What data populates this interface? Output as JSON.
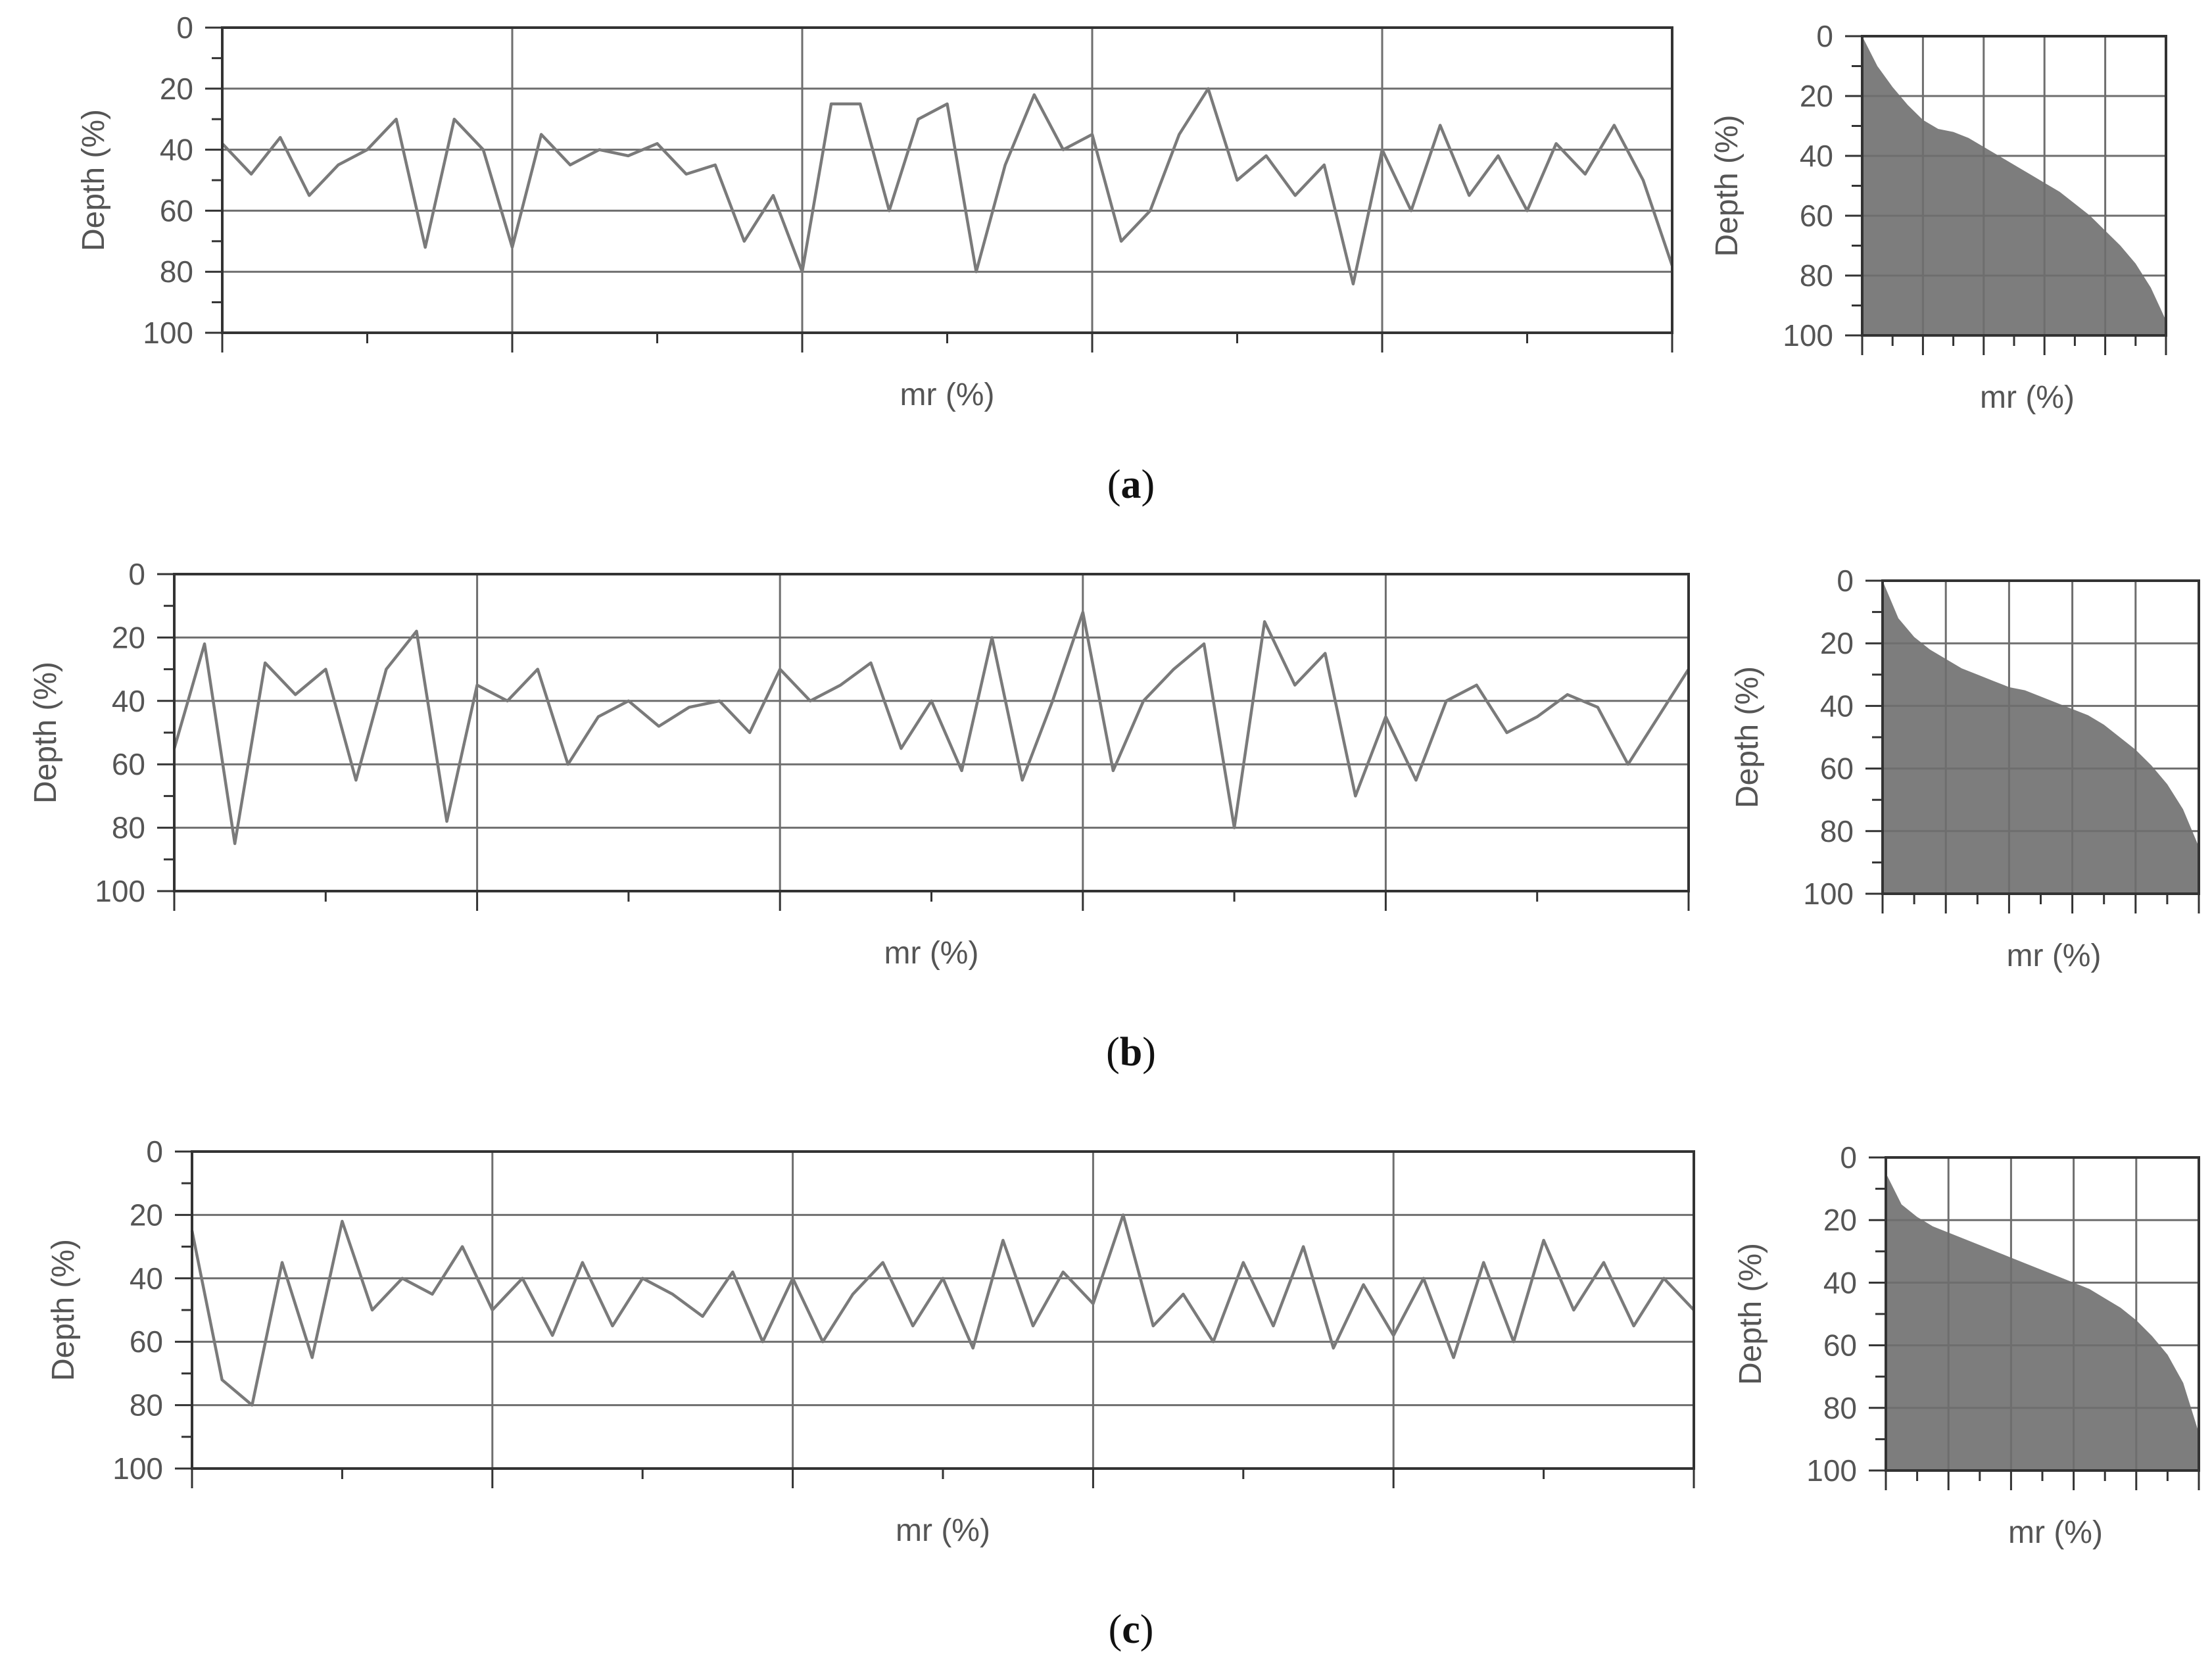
{
  "colors": {
    "line": "#7a7a7a",
    "axis": "#333333",
    "grid": "#6e6e6e",
    "fill": "#7d7d7d",
    "text": "#555555",
    "caption": "#111111"
  },
  "chart_data": [
    {
      "id": "a-profile",
      "type": "line",
      "caption": "a",
      "xlabel": "mr (%)",
      "ylabel": "Depth (%)",
      "ylim": [
        0,
        100
      ],
      "y_inverted": true,
      "y_ticks": [
        "0",
        "20",
        "40",
        "60",
        "80",
        "100"
      ],
      "grid": true,
      "x": [
        0,
        2,
        4,
        6,
        8,
        10,
        12,
        14,
        16,
        18,
        20,
        22,
        24,
        26,
        28,
        30,
        32,
        34,
        36,
        38,
        40,
        42,
        44,
        46,
        48,
        50,
        52,
        54,
        56,
        58,
        60,
        62,
        64,
        66,
        68,
        70,
        72,
        74,
        76,
        78,
        80,
        82,
        84,
        86,
        88,
        90,
        92,
        94,
        96,
        98,
        100
      ],
      "series": [
        {
          "values": [
            38,
            48,
            36,
            55,
            45,
            40,
            30,
            72,
            30,
            40,
            72,
            35,
            45,
            40,
            42,
            38,
            48,
            45,
            70,
            55,
            80,
            25,
            25,
            60,
            30,
            25,
            80,
            45,
            22,
            40,
            35,
            70,
            60,
            35,
            20,
            50,
            42,
            55,
            45,
            84,
            40,
            60,
            32,
            55,
            42,
            60,
            38,
            48,
            32,
            50,
            78
          ]
        }
      ]
    },
    {
      "id": "a-abbott",
      "type": "area",
      "caption": "a",
      "xlabel": "mr (%)",
      "ylabel": "Depth (%)",
      "ylim": [
        0,
        100
      ],
      "xlim": [
        0,
        100
      ],
      "y_inverted": true,
      "y_ticks": [
        "0",
        "20",
        "40",
        "60",
        "80",
        "100"
      ],
      "grid": true,
      "x": [
        0,
        5,
        10,
        15,
        20,
        25,
        30,
        35,
        40,
        45,
        50,
        55,
        60,
        65,
        70,
        75,
        80,
        85,
        90,
        95,
        100
      ],
      "series": [
        {
          "values": [
            0,
            10,
            17,
            23,
            28,
            31,
            32,
            34,
            37,
            40,
            43,
            46,
            49,
            52,
            56,
            60,
            65,
            70,
            76,
            84,
            95
          ]
        }
      ]
    },
    {
      "id": "b-profile",
      "type": "line",
      "caption": "b",
      "xlabel": "mr (%)",
      "ylabel": "Depth (%)",
      "ylim": [
        0,
        100
      ],
      "y_inverted": true,
      "y_ticks": [
        "0",
        "20",
        "40",
        "60",
        "80",
        "100"
      ],
      "grid": true,
      "x": [
        0,
        2,
        4,
        6,
        8,
        10,
        12,
        14,
        16,
        18,
        20,
        22,
        24,
        26,
        28,
        30,
        32,
        34,
        36,
        38,
        40,
        42,
        44,
        46,
        48,
        50,
        52,
        54,
        56,
        58,
        60,
        62,
        64,
        66,
        68,
        70,
        72,
        74,
        76,
        78,
        80,
        82,
        84,
        86,
        88,
        90,
        92,
        94,
        96,
        98,
        100
      ],
      "series": [
        {
          "values": [
            55,
            22,
            85,
            28,
            38,
            30,
            65,
            30,
            18,
            78,
            35,
            40,
            30,
            60,
            45,
            40,
            48,
            42,
            40,
            50,
            30,
            40,
            35,
            28,
            55,
            40,
            62,
            20,
            65,
            40,
            12,
            62,
            40,
            30,
            22,
            80,
            15,
            35,
            25,
            70,
            45,
            65,
            40,
            35,
            50,
            45,
            38,
            42,
            60,
            45,
            30
          ]
        }
      ]
    },
    {
      "id": "b-abbott",
      "type": "area",
      "caption": "b",
      "xlabel": "mr (%)",
      "ylabel": "Depth (%)",
      "ylim": [
        0,
        100
      ],
      "xlim": [
        0,
        100
      ],
      "y_inverted": true,
      "y_ticks": [
        "0",
        "20",
        "40",
        "60",
        "80",
        "100"
      ],
      "grid": true,
      "x": [
        0,
        5,
        10,
        15,
        20,
        25,
        30,
        35,
        40,
        45,
        50,
        55,
        60,
        65,
        70,
        75,
        80,
        85,
        90,
        95,
        100
      ],
      "series": [
        {
          "values": [
            0,
            12,
            18,
            22,
            25,
            28,
            30,
            32,
            34,
            35,
            37,
            39,
            41,
            43,
            46,
            50,
            54,
            59,
            65,
            73,
            85
          ]
        }
      ]
    },
    {
      "id": "c-profile",
      "type": "line",
      "caption": "c",
      "xlabel": "mr (%)",
      "ylabel": "Depth (%)",
      "ylim": [
        0,
        100
      ],
      "y_inverted": true,
      "y_ticks": [
        "0",
        "20",
        "40",
        "60",
        "80",
        "100"
      ],
      "grid": true,
      "x": [
        0,
        2,
        4,
        6,
        8,
        10,
        12,
        14,
        16,
        18,
        20,
        22,
        24,
        26,
        28,
        30,
        32,
        34,
        36,
        38,
        40,
        42,
        44,
        46,
        48,
        50,
        52,
        54,
        56,
        58,
        60,
        62,
        64,
        66,
        68,
        70,
        72,
        74,
        76,
        78,
        80,
        82,
        84,
        86,
        88,
        90,
        92,
        94,
        96,
        98,
        100
      ],
      "series": [
        {
          "values": [
            25,
            72,
            80,
            35,
            65,
            22,
            50,
            40,
            45,
            30,
            50,
            40,
            58,
            35,
            55,
            40,
            45,
            52,
            38,
            60,
            40,
            60,
            45,
            35,
            55,
            40,
            62,
            28,
            55,
            38,
            48,
            20,
            55,
            45,
            60,
            35,
            55,
            30,
            62,
            42,
            58,
            40,
            65,
            35,
            60,
            28,
            50,
            35,
            55,
            40,
            50
          ]
        }
      ]
    },
    {
      "id": "c-abbott",
      "type": "area",
      "caption": "c",
      "xlabel": "mr (%)",
      "ylabel": "Depth (%)",
      "ylim": [
        0,
        100
      ],
      "xlim": [
        0,
        100
      ],
      "y_inverted": true,
      "y_ticks": [
        "0",
        "20",
        "40",
        "60",
        "80",
        "100"
      ],
      "grid": true,
      "x": [
        0,
        5,
        10,
        15,
        20,
        25,
        30,
        35,
        40,
        45,
        50,
        55,
        60,
        65,
        70,
        75,
        80,
        85,
        90,
        95,
        100
      ],
      "series": [
        {
          "values": [
            5,
            15,
            19,
            22,
            24,
            26,
            28,
            30,
            32,
            34,
            36,
            38,
            40,
            42,
            45,
            48,
            52,
            57,
            63,
            72,
            88
          ]
        }
      ]
    }
  ]
}
